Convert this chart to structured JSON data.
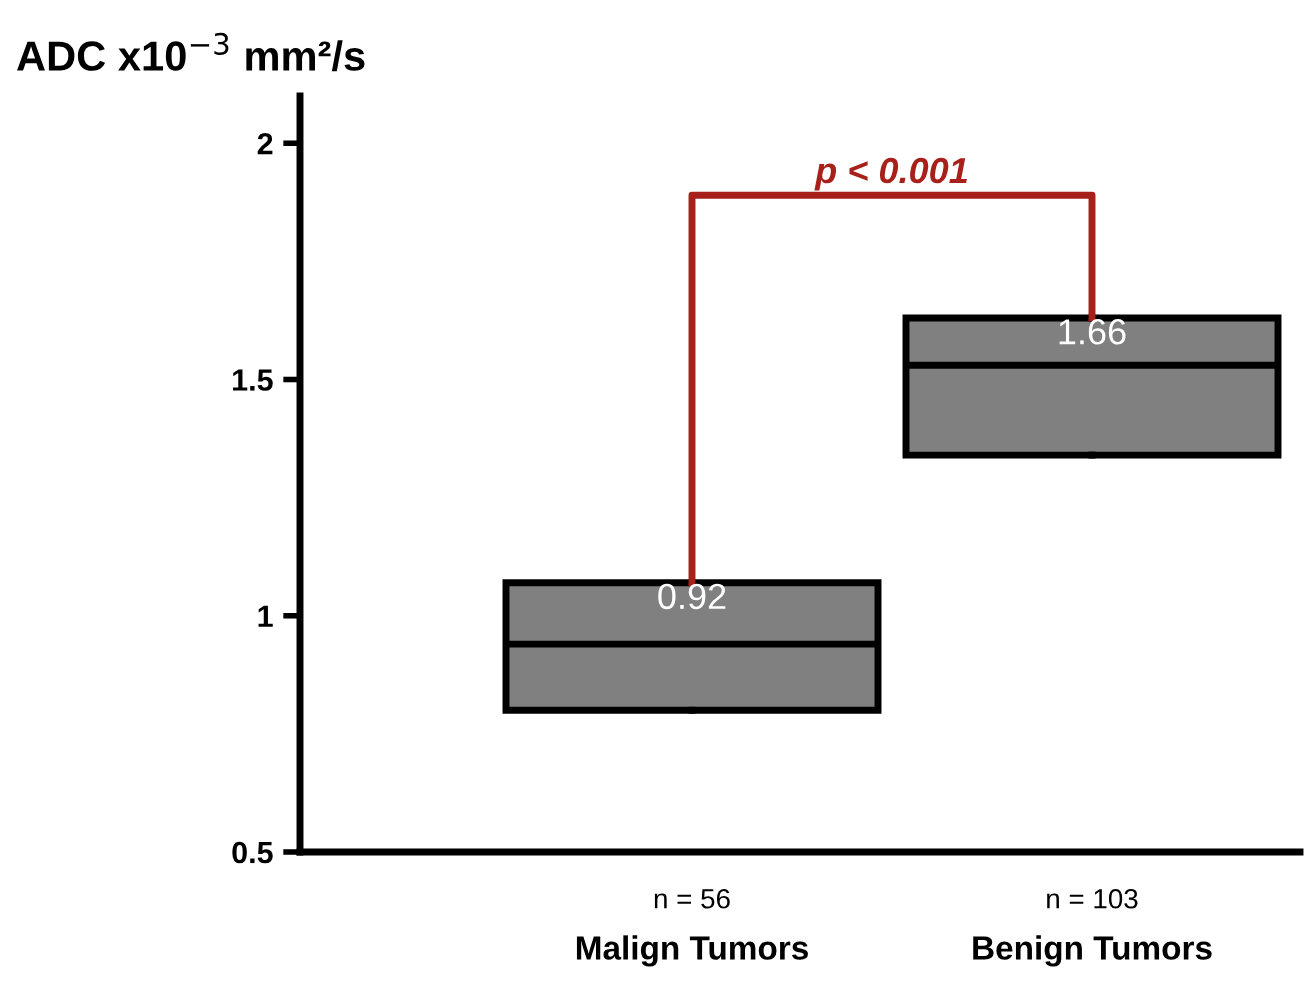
{
  "chart_data": {
    "type": "box",
    "ylabel": "ADC x10$^{−3}$ mm²/s",
    "categories": [
      "Malign Tumors",
      "Benign Tumors"
    ],
    "boxes": [
      {
        "low": 0.8,
        "q1": 0.8,
        "median": 0.94,
        "q3": 1.07,
        "high": 1.07
      },
      {
        "low": 1.34,
        "q1": 1.34,
        "median": 1.53,
        "q3": 1.63,
        "high": 1.63
      }
    ],
    "color": "#808080",
    "ylim": [
      0.5,
      2.1
    ],
    "yticks": [
      0.5,
      1,
      1.5,
      2
    ],
    "grid": false,
    "annotations": [
      "0.92",
      "1.66",
      "p < 0.001",
      "n = 56",
      "n = 103"
    ]
  }
}
